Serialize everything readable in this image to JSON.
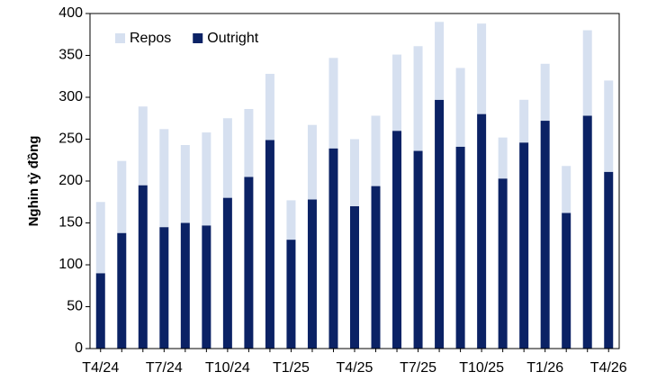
{
  "chart_data": {
    "type": "stacked_bar",
    "y_label": "Nghin tỷ đồng",
    "categories": [
      "T4/24",
      null,
      null,
      "T7/24",
      null,
      null,
      "T10/24",
      null,
      null,
      "T1/25",
      null,
      null,
      "T4/25",
      null,
      null,
      "T7/25",
      null,
      null,
      "T10/25",
      null,
      null,
      "T1/26",
      null,
      null,
      "T4/26"
    ],
    "series": [
      {
        "name": "Repos",
        "color": "#d6e0f0",
        "values": [
          85,
          86,
          94,
          117,
          93,
          111,
          95,
          81,
          79,
          47,
          89,
          108,
          80,
          84,
          91,
          125,
          93,
          94,
          108,
          49,
          51,
          68,
          56,
          102,
          109
        ]
      },
      {
        "name": "Outright",
        "color": "#0b2265",
        "values": [
          90,
          138,
          195,
          145,
          150,
          147,
          180,
          205,
          249,
          130,
          178,
          239,
          170,
          194,
          260,
          236,
          297,
          241,
          280,
          203,
          246,
          272,
          162,
          278,
          211
        ]
      }
    ],
    "ylim": [
      0,
      400
    ],
    "yticks": [
      0,
      50,
      100,
      150,
      200,
      250,
      300,
      350,
      400
    ],
    "grid": false,
    "legend": "top-left"
  }
}
